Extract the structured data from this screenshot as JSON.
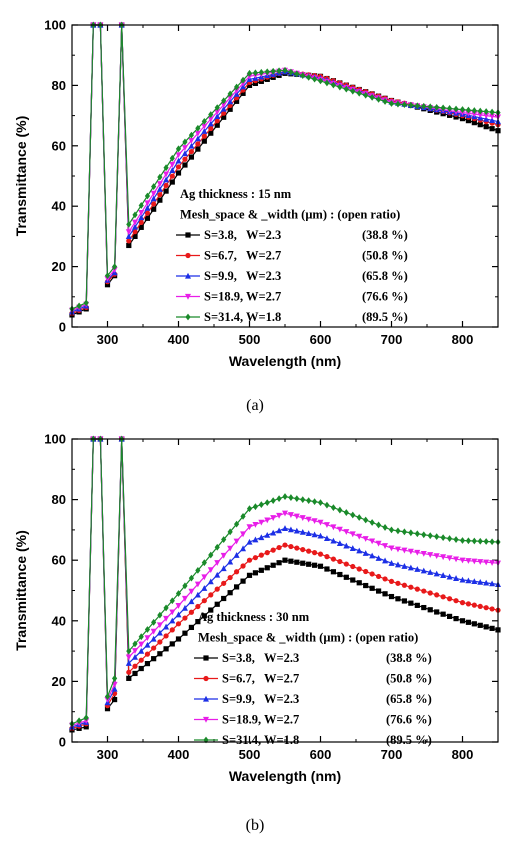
{
  "chart_data": [
    {
      "type": "line",
      "panel_label": "(a)",
      "xlabel": "Wavelength (nm)",
      "ylabel": "Transmittance (%)",
      "xlim": [
        250,
        850
      ],
      "ylim": [
        0,
        100
      ],
      "xticks": [
        300,
        400,
        500,
        600,
        700,
        800
      ],
      "yticks": [
        0,
        20,
        40,
        60,
        80,
        100
      ],
      "legend_title_1": "Ag thickness : 15 nm",
      "legend_title_2": "Mesh_space & _width (μm) : (open ratio)",
      "legend_placement": "center-right",
      "x": [
        250,
        270,
        280,
        290,
        300,
        310,
        320,
        330,
        400,
        500,
        550,
        600,
        700,
        800,
        850
      ],
      "series": [
        {
          "name": "S=3.8,   W=2.3",
          "ratio": "(38.8 %)",
          "color": "#000000",
          "marker": "square",
          "values": [
            4,
            6,
            100,
            100,
            14,
            17,
            100,
            27,
            51,
            80,
            84,
            83,
            75,
            69,
            65
          ]
        },
        {
          "name": "S=6.7,   W=2.7",
          "ratio": "(50.8 %)",
          "color": "#e8191a",
          "marker": "circle",
          "values": [
            4.5,
            6.5,
            100,
            100,
            15,
            17.5,
            100,
            28.5,
            53,
            81,
            84.5,
            83,
            75,
            70,
            67
          ]
        },
        {
          "name": "S=9.9,   W=2.3",
          "ratio": "(65.8 %)",
          "color": "#1c2fe6",
          "marker": "triangle-up",
          "values": [
            5,
            7,
            100,
            100,
            15.5,
            18,
            100,
            30,
            55,
            82,
            84.5,
            82.5,
            74.5,
            70.5,
            68
          ]
        },
        {
          "name": "S=18.9, W=2.7",
          "ratio": "(76.6 %)",
          "color": "#e81ee8",
          "marker": "triangle-down",
          "values": [
            5.5,
            7.5,
            100,
            100,
            16,
            19,
            100,
            31.5,
            57,
            83,
            85,
            82,
            74.5,
            71,
            69.5
          ]
        },
        {
          "name": "S=31.4, W=1.8",
          "ratio": "(89.5 %)",
          "color": "#1a8a2a",
          "marker": "diamond",
          "values": [
            6,
            8,
            100,
            100,
            17,
            20,
            100,
            34,
            59,
            84,
            85,
            81.5,
            74,
            72,
            71
          ]
        }
      ]
    },
    {
      "type": "line",
      "panel_label": "(b)",
      "xlabel": "Wavelength (nm)",
      "ylabel": "Transmittance (%)",
      "xlim": [
        250,
        850
      ],
      "ylim": [
        0,
        100
      ],
      "xticks": [
        300,
        400,
        500,
        600,
        700,
        800
      ],
      "yticks": [
        0,
        20,
        40,
        60,
        80,
        100
      ],
      "legend_title_1": "Ag thickness : 30 nm",
      "legend_title_2": "Mesh_space & _width (μm) : (open ratio)",
      "legend_placement": "lower-right",
      "x": [
        250,
        270,
        280,
        290,
        300,
        310,
        320,
        330,
        400,
        500,
        550,
        600,
        700,
        800,
        850
      ],
      "series": [
        {
          "name": "S=3.8,   W=2.3",
          "ratio": "(38.8 %)",
          "color": "#000000",
          "marker": "square",
          "values": [
            4,
            5,
            100,
            100,
            11,
            14,
            100,
            21,
            34,
            55,
            60,
            58,
            48,
            40,
            37
          ]
        },
        {
          "name": "S=6.7,   W=2.7",
          "ratio": "(50.8 %)",
          "color": "#e8191a",
          "marker": "circle",
          "values": [
            4.5,
            6,
            100,
            100,
            12,
            16,
            100,
            23,
            39,
            60,
            65,
            62,
            53,
            46,
            43.5
          ]
        },
        {
          "name": "S=9.9,   W=2.3",
          "ratio": "(65.8 %)",
          "color": "#1c2fe6",
          "marker": "triangle-up",
          "values": [
            5,
            6.5,
            100,
            100,
            13,
            17.5,
            100,
            26,
            42,
            66,
            70.5,
            68,
            59,
            53.5,
            52
          ]
        },
        {
          "name": "S=18.9, W=2.7",
          "ratio": "(76.6 %)",
          "color": "#e81ee8",
          "marker": "triangle-down",
          "values": [
            5.5,
            7,
            100,
            100,
            14,
            19,
            100,
            28,
            45,
            71,
            75.5,
            72.5,
            64,
            60,
            59
          ]
        },
        {
          "name": "S=31.4, W=1.8",
          "ratio": "(89.5 %)",
          "color": "#1a8a2a",
          "marker": "diamond",
          "values": [
            6,
            8,
            100,
            100,
            15,
            21,
            100,
            30,
            49,
            77,
            81,
            79,
            70,
            66.5,
            66
          ]
        }
      ]
    }
  ]
}
